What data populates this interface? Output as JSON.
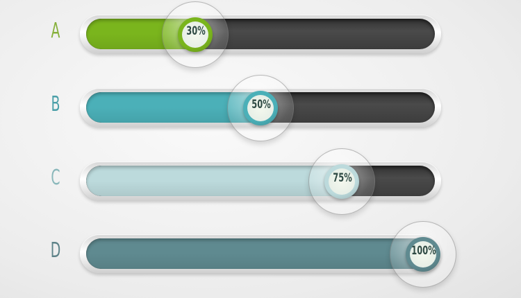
{
  "chart_data": {
    "type": "bar",
    "orientation": "horizontal",
    "categories": [
      "A",
      "B",
      "C",
      "D"
    ],
    "values": [
      30,
      50,
      75,
      100
    ],
    "value_labels": [
      "30%",
      "50%",
      "75%",
      "100%"
    ],
    "xlim": [
      0,
      100
    ],
    "colors": [
      "#7ab51d",
      "#4bb0b8",
      "#bcdadc",
      "#5f8a90"
    ],
    "label_colors": [
      "#86b03a",
      "#4a9fa8",
      "#8ab8bb",
      "#5d8288"
    ],
    "track_color": "#444444",
    "grid": false
  }
}
